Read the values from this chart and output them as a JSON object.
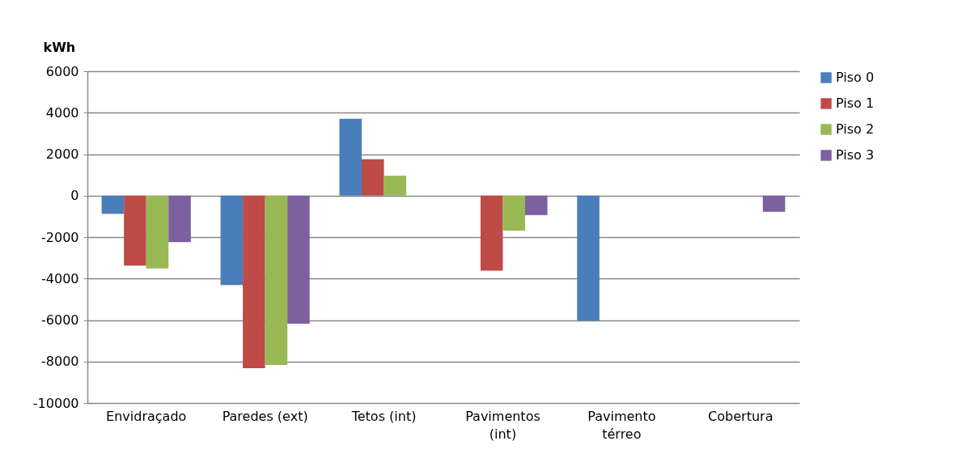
{
  "chart_data": {
    "type": "bar",
    "ylabel": "kWh",
    "categories": [
      "Envidraçado",
      "Paredes (ext)",
      "Tetos (int)",
      "Pavimentos (int)",
      "Pavimento térreo",
      "Cobertura"
    ],
    "series": [
      {
        "name": "Piso 0",
        "color": "#4a7ebb",
        "values": [
          -880,
          -4310,
          3710,
          null,
          -6030,
          null
        ]
      },
      {
        "name": "Piso 1",
        "color": "#be4b48",
        "values": [
          -3380,
          -8320,
          1760,
          -3620,
          null,
          null
        ]
      },
      {
        "name": "Piso 2",
        "color": "#98b954",
        "values": [
          -3510,
          -8170,
          960,
          -1690,
          null,
          null
        ]
      },
      {
        "name": "Piso 3",
        "color": "#7d60a0",
        "values": [
          -2240,
          -6180,
          null,
          -940,
          null,
          -780
        ]
      }
    ],
    "ylim": [
      -10000,
      6000
    ],
    "yticks": [
      -10000,
      -8000,
      -6000,
      -4000,
      -2000,
      0,
      2000,
      4000,
      6000
    ],
    "grid": "y",
    "legend": "right"
  }
}
